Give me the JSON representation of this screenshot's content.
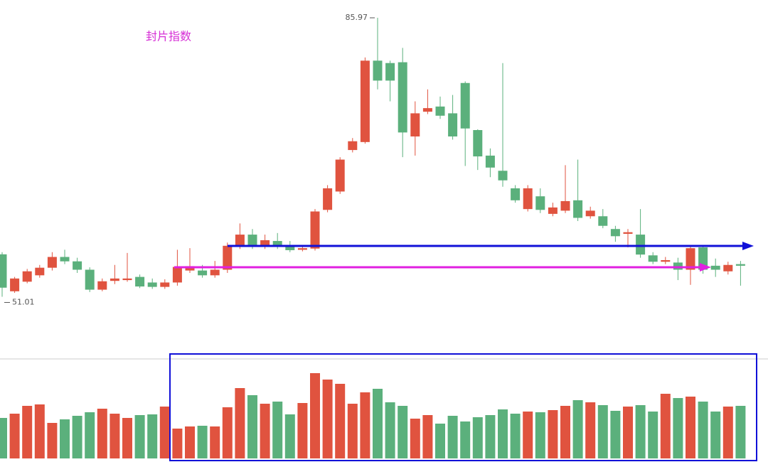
{
  "chart_data": [
    {
      "type": "candlestick",
      "title": "封片指数",
      "up_color": "#e0533f",
      "down_color": "#5bb07c",
      "title_color": "#d62fd6",
      "ylim": [
        49.9,
        88.2
      ],
      "open": [
        56.33,
        51.7,
        52.9,
        53.7,
        54.65,
        56.0,
        55.45,
        54.4,
        51.9,
        53.0,
        53.1,
        53.5,
        52.8,
        52.25,
        52.8,
        54.3,
        54.3,
        53.7,
        54.4,
        57.4,
        58.8,
        57.4,
        58.0,
        57.5,
        56.9,
        57.05,
        61.9,
        64.2,
        69.4,
        70.4,
        80.6,
        80.3,
        80.4,
        71.1,
        74.2,
        74.85,
        74.0,
        77.8,
        71.9,
        68.7,
        66.8,
        64.6,
        62.0,
        63.6,
        61.4,
        61.8,
        63.1,
        61.1,
        61.1,
        59.5,
        58.9,
        58.8,
        56.2,
        55.4,
        55.3,
        54.4,
        57.2,
        54.9,
        54.2,
        55.1
      ],
      "high": [
        56.6,
        53.5,
        54.5,
        55.0,
        56.6,
        56.9,
        55.9,
        54.7,
        53.3,
        55.0,
        56.5,
        53.8,
        53.3,
        53.2,
        56.9,
        57.1,
        55.0,
        55.5,
        57.8,
        60.2,
        59.5,
        58.8,
        59.0,
        58.0,
        57.5,
        62.0,
        65.0,
        68.5,
        70.9,
        81.0,
        85.97,
        80.6,
        82.2,
        75.5,
        77.0,
        76.1,
        76.3,
        78.0,
        72.0,
        69.6,
        80.3,
        65.0,
        65.0,
        64.6,
        62.8,
        67.5,
        68.2,
        62.3,
        62.0,
        59.9,
        59.5,
        62.0,
        56.6,
        56.0,
        55.9,
        57.3,
        57.4,
        55.8,
        55.4,
        55.5
      ],
      "low": [
        51.01,
        51.5,
        52.7,
        53.4,
        54.3,
        55.1,
        54.0,
        51.6,
        51.7,
        52.6,
        52.9,
        52.1,
        52.0,
        52.0,
        52.4,
        54.0,
        53.4,
        53.4,
        54.0,
        57.0,
        57.0,
        57.0,
        57.0,
        56.6,
        56.7,
        56.8,
        61.6,
        63.9,
        69.1,
        70.2,
        77.0,
        75.5,
        68.5,
        68.7,
        73.9,
        73.3,
        70.7,
        67.4,
        66.9,
        66.0,
        64.8,
        62.8,
        61.7,
        61.5,
        61.1,
        61.5,
        60.5,
        60.8,
        59.6,
        57.9,
        57.2,
        55.9,
        55.1,
        55.1,
        53.1,
        52.5,
        53.9,
        53.5,
        53.8,
        52.4
      ],
      "close": [
        52.15,
        53.3,
        54.2,
        54.65,
        56.0,
        55.45,
        54.4,
        51.9,
        52.95,
        53.3,
        53.3,
        52.3,
        52.25,
        52.8,
        54.75,
        54.85,
        53.7,
        54.4,
        57.4,
        58.8,
        57.4,
        58.1,
        57.4,
        56.85,
        57.1,
        61.7,
        64.6,
        68.2,
        70.5,
        80.6,
        78.1,
        78.1,
        71.6,
        74.0,
        74.65,
        73.7,
        71.1,
        72.1,
        68.6,
        67.2,
        65.6,
        63.1,
        64.6,
        61.9,
        62.2,
        63.0,
        60.9,
        61.8,
        59.9,
        58.6,
        59.1,
        56.3,
        55.4,
        55.6,
        54.4,
        57.1,
        54.4,
        54.4,
        55.0,
        54.9
      ]
    },
    {
      "type": "bar",
      "ylim": [
        0,
        140
      ],
      "values": [
        57,
        63,
        74,
        76,
        50,
        55,
        60,
        65,
        70,
        63,
        57,
        61,
        62,
        73,
        42,
        45,
        46,
        45,
        72,
        99,
        89,
        77,
        80,
        62,
        78,
        120,
        111,
        105,
        77,
        93,
        98,
        79,
        74,
        56,
        61,
        49,
        60,
        52,
        58,
        61,
        69,
        63,
        66,
        65,
        68,
        74,
        82,
        79,
        75,
        67,
        73,
        75,
        66,
        91,
        85,
        87,
        80,
        66,
        73,
        74
      ]
    }
  ]
}
